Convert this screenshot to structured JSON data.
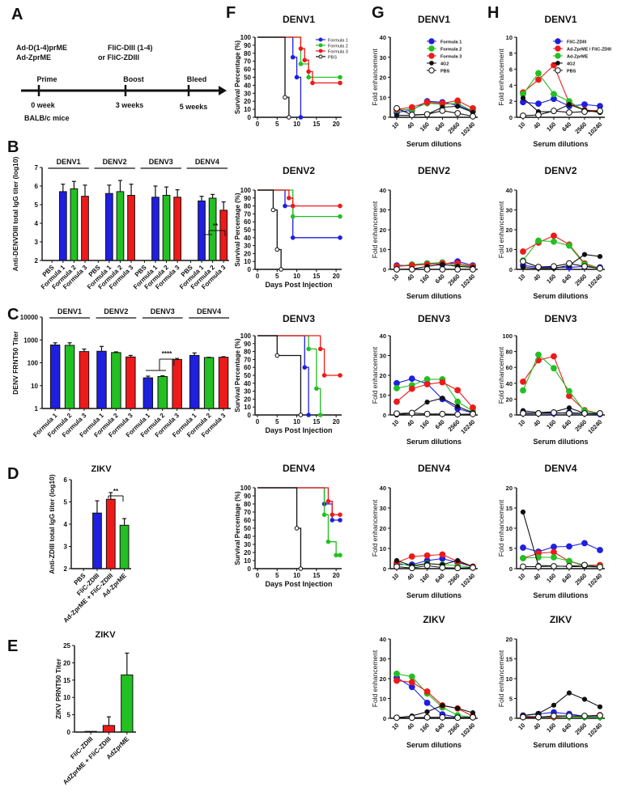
{
  "colors": {
    "blue": "#1f1fe0",
    "green": "#22c022",
    "red": "#ee1a1a",
    "black": "#111111",
    "white": "#ffffff"
  },
  "panel_letters": [
    "A",
    "B",
    "C",
    "D",
    "E",
    "F",
    "G",
    "H"
  ],
  "timeline": {
    "prime_vaccines": [
      "Ad-D(1-4)prME",
      "Ad-ZprME"
    ],
    "boost_vaccines": [
      "FliC-DIII (1-4)",
      "or FliC-ZDIII"
    ],
    "events": [
      "Prime",
      "Boost",
      "Bleed"
    ],
    "times": [
      "0 week",
      "3 weeks",
      "5 weeks"
    ],
    "mice": "BALB/c mice"
  },
  "chart_data": [
    {
      "id": "B",
      "type": "bar",
      "ylabel": "Anti-DENVDIII total IgG titer (log10)",
      "ylim": [
        2,
        7
      ],
      "yticks": [
        "2",
        "3",
        "4",
        "5",
        "6",
        "7"
      ],
      "groups": [
        "DENV1",
        "DENV2",
        "DENV3",
        "DENV4"
      ],
      "categories": [
        "PBS",
        "Formula 1",
        "Formula 2",
        "Formula 3"
      ],
      "values": [
        [
          null,
          5.7,
          5.85,
          5.45
        ],
        [
          null,
          5.6,
          5.7,
          5.5
        ],
        [
          null,
          5.4,
          5.5,
          5.4
        ],
        [
          null,
          5.2,
          5.35,
          4.7
        ]
      ],
      "errors": [
        [
          0,
          0.4,
          0.4,
          0.6
        ],
        [
          0,
          0.45,
          0.6,
          0.6
        ],
        [
          0,
          0.6,
          0.45,
          0.4
        ],
        [
          0,
          0.25,
          0.2,
          0.45
        ]
      ],
      "significance": {
        "group": "DENV4",
        "label": "**"
      }
    },
    {
      "id": "C",
      "type": "bar",
      "scale": "log",
      "ylabel": "DENV FRNT50 Titer",
      "ylim": [
        1,
        10000
      ],
      "yticks": [
        "1",
        "10",
        "100",
        "1000",
        "10000"
      ],
      "groups": [
        "DENV1",
        "DENV2",
        "DENV3",
        "DENV4"
      ],
      "categories": [
        "Formula 1",
        "Formula 2",
        "Formula 3"
      ],
      "values": [
        [
          600,
          580,
          310
        ],
        [
          320,
          280,
          180
        ],
        [
          22,
          25,
          140
        ],
        [
          210,
          170,
          175
        ]
      ],
      "errors": [
        [
          150,
          170,
          90
        ],
        [
          200,
          20,
          30
        ],
        [
          4,
          2,
          15
        ],
        [
          60,
          5,
          10
        ]
      ],
      "significance": {
        "group": "DENV3",
        "label": "****"
      }
    },
    {
      "id": "D",
      "type": "bar",
      "title": "ZIKV",
      "ylabel": "Anti-ZDIII total IgG titer (log10)",
      "ylim": [
        2,
        6
      ],
      "yticks": [
        "2",
        "3",
        "4",
        "5",
        "6"
      ],
      "categories": [
        "PBS",
        "FliC-ZDIII",
        "Ad-ZprME + FliC-ZDIII",
        "Ad-ZprME"
      ],
      "values": [
        null,
        4.5,
        5.12,
        3.95
      ],
      "errors": [
        0,
        0.55,
        0.3,
        0.3
      ],
      "bar_colors": [
        "black",
        "blue",
        "red",
        "green"
      ],
      "significance": {
        "label": "**"
      }
    },
    {
      "id": "E",
      "type": "bar",
      "title": "ZIKV",
      "ylabel": "ZIKV PRNT50 Titer",
      "ylim": [
        0,
        25
      ],
      "yticks": [
        "0",
        "5",
        "10",
        "15",
        "20",
        "25"
      ],
      "categories": [
        "FliC-ZDIII",
        "AdZprME + FliC-ZDIII",
        "AdZprME"
      ],
      "values": [
        0.2,
        1.9,
        16.5
      ],
      "errors": [
        0,
        2.5,
        6.3
      ],
      "bar_colors": [
        "black",
        "red",
        "green"
      ]
    },
    {
      "id": "F",
      "type": "line",
      "subtype": "survival",
      "ylabel": "Survival Percentage (%)",
      "xlabel": "Days Post Injection",
      "xlim": [
        0,
        21
      ],
      "ylim": [
        0,
        100
      ],
      "xticks": [
        "0",
        "5",
        "10",
        "15",
        "20"
      ],
      "yticks": [
        "0",
        "10",
        "20",
        "30",
        "40",
        "50",
        "60",
        "70",
        "80",
        "90",
        "100"
      ],
      "legend": [
        "Formula 1",
        "Formula 2",
        "Formula 3",
        "PBS"
      ],
      "series_colors": [
        "blue",
        "green",
        "red",
        "black"
      ],
      "panels": [
        {
          "title": "DENV1",
          "series": [
            [
              [
                9,
                75
              ],
              [
                10,
                50
              ],
              [
                11,
                0
              ]
            ],
            [
              [
                11,
                66.7
              ],
              [
                13,
                50
              ],
              [
                21,
                50
              ]
            ],
            [
              [
                11,
                85.7
              ],
              [
                12,
                71.4
              ],
              [
                13,
                57.1
              ],
              [
                14,
                42.9
              ],
              [
                21,
                42.9
              ]
            ],
            [
              [
                7,
                25
              ],
              [
                8,
                0
              ]
            ]
          ]
        },
        {
          "title": "DENV2",
          "series": [
            [
              [
                7,
                80
              ],
              [
                9,
                40
              ],
              [
                21,
                40
              ]
            ],
            [
              [
                9,
                66.7
              ],
              [
                21,
                66.7
              ]
            ],
            [
              [
                8,
                90
              ],
              [
                9,
                80
              ],
              [
                21,
                80
              ]
            ],
            [
              [
                4,
                75
              ],
              [
                5,
                25
              ],
              [
                6,
                0
              ]
            ]
          ]
        },
        {
          "title": "DENV3",
          "series": [
            [
              [
                12,
                60
              ],
              [
                13,
                0
              ]
            ],
            [
              [
                13,
                83.3
              ],
              [
                15,
                33.3
              ],
              [
                16,
                0
              ]
            ],
            [
              [
                16,
                83.3
              ],
              [
                17,
                50
              ],
              [
                21,
                50
              ]
            ],
            [
              [
                5,
                75
              ],
              [
                11,
                0
              ]
            ]
          ]
        },
        {
          "title": "DENV4",
          "series": [
            [
              [
                17,
                80
              ],
              [
                19,
                60
              ],
              [
                21,
                60
              ]
            ],
            [
              [
                17,
                66.7
              ],
              [
                18,
                33.3
              ],
              [
                20,
                16.7
              ],
              [
                21,
                16.7
              ]
            ],
            [
              [
                18,
                83.3
              ],
              [
                19,
                66.7
              ],
              [
                21,
                66.7
              ]
            ],
            [
              [
                10,
                50
              ],
              [
                11,
                0
              ]
            ]
          ]
        }
      ]
    },
    {
      "id": "G",
      "type": "line",
      "ylabel": "Fold enhancement",
      "xlabel": "Serum dilutions",
      "x": [
        "10",
        "40",
        "160",
        "640",
        "2560",
        "10240"
      ],
      "legend": [
        "Formula 1",
        "Formula 2",
        "Formula 3",
        "4G2",
        "PBS"
      ],
      "series_colors": [
        "blue",
        "green",
        "red",
        "black",
        "white"
      ],
      "panels": [
        {
          "title": "DENV1",
          "ymax": 40,
          "series": [
            [
              2.5,
              3.5,
              8,
              7.5,
              6,
              3
            ],
            [
              3.5,
              4,
              7,
              6.5,
              7,
              3
            ],
            [
              4,
              5,
              7.5,
              7,
              8.3,
              4.5
            ],
            [
              1,
              1,
              1.5,
              5,
              5.5,
              2.5
            ],
            [
              4.5,
              1.2,
              1.5,
              3.3,
              2,
              0.5
            ]
          ]
        },
        {
          "title": "DENV2",
          "ymax": 40,
          "series": [
            [
              2,
              2,
              3,
              2.5,
              4,
              2
            ],
            [
              1.5,
              2.5,
              3,
              3.5,
              2,
              1.5
            ],
            [
              1.5,
              2,
              2.5,
              3,
              3,
              1.5
            ],
            [
              0,
              0.2,
              1.5,
              2.5,
              1.5,
              1
            ],
            [
              0,
              0,
              0,
              0,
              0,
              0
            ]
          ]
        },
        {
          "title": "DENV3",
          "ymax": 40,
          "series": [
            [
              16,
              18.3,
              15.8,
              8,
              3.2,
              1
            ],
            [
              13.5,
              15,
              18,
              18,
              6.7,
              2
            ],
            [
              6.7,
              13.2,
              15.5,
              16.5,
              12.5,
              3.7
            ],
            [
              0,
              1,
              6.5,
              8.5,
              4.3,
              1.2
            ],
            [
              0.7,
              1,
              0.5,
              0.5,
              0.3,
              0.5
            ]
          ]
        },
        {
          "title": "DENV4",
          "ymax": 40,
          "series": [
            [
              2,
              2,
              4,
              5,
              3,
              1
            ],
            [
              3,
              1,
              2.5,
              2,
              1.5,
              0.5
            ],
            [
              3,
              6,
              6.5,
              7,
              3.5,
              1
            ],
            [
              4,
              1.5,
              2.5,
              2,
              4,
              1
            ],
            [
              1,
              0.3,
              1.5,
              0.5,
              0.3,
              0.5
            ]
          ]
        },
        {
          "title": "ZIKV",
          "ymax": 40,
          "series": [
            [
              20.5,
              15.8,
              7.8,
              2,
              0.5,
              0.5
            ],
            [
              22.5,
              21,
              12.5,
              5.5,
              1.5,
              0.5
            ],
            [
              19,
              18.2,
              13.5,
              6.5,
              5,
              1
            ],
            [
              0.3,
              1.2,
              3.3,
              6.5,
              5,
              2.8
            ],
            [
              0.3,
              0.3,
              0.5,
              0.5,
              0.3,
              0.5
            ]
          ]
        }
      ]
    },
    {
      "id": "H",
      "type": "line",
      "ylabel": "Fold enhancement",
      "xlabel": "Serum dilutions",
      "x": [
        "10",
        "40",
        "160",
        "640",
        "2560",
        "10240"
      ],
      "legend": [
        "FliC-ZDIII",
        "Ad-ZprME / FliC-ZDIII",
        "Ad-ZprME",
        "4G2",
        "PBS"
      ],
      "series_colors": [
        "blue",
        "red",
        "green",
        "black",
        "white"
      ],
      "panels": [
        {
          "title": "DENV1",
          "ymax": 10,
          "series": [
            [
              1.9,
              1.7,
              2.3,
              1.4,
              1.6,
              1.4
            ],
            [
              3.1,
              4.7,
              6.5,
              1.8,
              0.9,
              0.8
            ],
            [
              2.9,
              5.5,
              2.9,
              2.0,
              0.8,
              0.7
            ],
            [
              2.4,
              0.7,
              0.7,
              1.6,
              0.9,
              0.6
            ],
            [
              0.2,
              0.3,
              0.8,
              0.6,
              0.7,
              0.8
            ]
          ]
        },
        {
          "title": "DENV2",
          "ymax": 40,
          "series": [
            [
              2,
              1,
              1,
              1,
              1.5,
              1
            ],
            [
              9,
              13.5,
              17,
              12.5,
              3,
              0.5
            ],
            [
              4.5,
              14.5,
              14,
              12,
              2.5,
              0.5
            ],
            [
              1,
              0.5,
              0.5,
              2,
              7.5,
              6.5
            ],
            [
              4,
              1.2,
              1.5,
              3,
              1.5,
              0.5
            ]
          ]
        },
        {
          "title": "DENV3",
          "ymax": 100,
          "series": [
            [
              3,
              2,
              2,
              3,
              2,
              1
            ],
            [
              42,
              69,
              74,
              24,
              6,
              2
            ],
            [
              31,
              76,
              59,
              30,
              5,
              2
            ],
            [
              5.5,
              3,
              4,
              9,
              2,
              2
            ],
            [
              2,
              2,
              3,
              2,
              2,
              2
            ]
          ]
        },
        {
          "title": "DENV4",
          "ymax": 20,
          "series": [
            [
              5.2,
              4.2,
              5.4,
              5.5,
              6.3,
              4.6
            ],
            [
              2.6,
              3.8,
              4.1,
              1.8,
              0.8,
              0.9
            ],
            [
              2.6,
              2.8,
              2.8,
              1.9,
              0.9,
              0.5
            ],
            [
              14,
              0.8,
              0.7,
              0.5,
              0.5,
              0.4
            ],
            [
              0.5,
              0.5,
              0.6,
              0.6,
              0.9,
              0.4
            ]
          ]
        },
        {
          "title": "ZIKV",
          "ymax": 20,
          "series": [
            [
              0.7,
              1.1,
              1.5,
              1.1,
              0.5,
              0.6
            ],
            [
              0.5,
              0.4,
              0.3,
              0.5,
              0.5,
              0.8
            ],
            [
              0.3,
              0.3,
              0.5,
              0.4,
              0.3,
              0.3
            ],
            [
              0.7,
              1.2,
              3.3,
              6.4,
              4.8,
              2.9
            ],
            [
              0.3,
              0.3,
              0.6,
              0.6,
              0.6,
              0.7
            ]
          ]
        }
      ]
    }
  ]
}
